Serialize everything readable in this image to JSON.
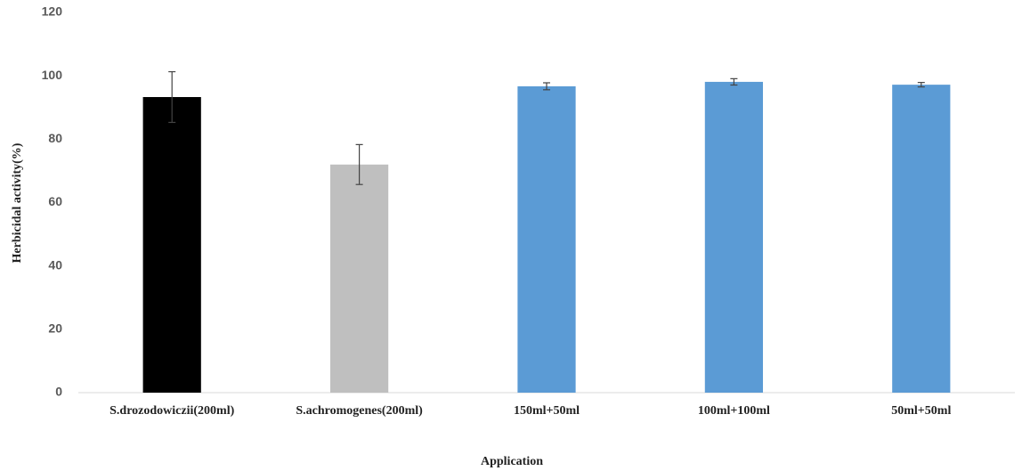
{
  "chart_data": {
    "type": "bar",
    "categories": [
      "S.drozodowiczii(200ml)",
      "S.achromogenes(200ml)",
      "150ml+50ml",
      "100ml+100ml",
      "50ml+50ml"
    ],
    "values": [
      93.3,
      72.0,
      96.7,
      98.1,
      97.2
    ],
    "errors": [
      8.0,
      6.3,
      1.1,
      1.0,
      0.7
    ],
    "colors": [
      "#000000",
      "#bfbfbf",
      "#5b9bd5",
      "#5b9bd5",
      "#5b9bd5"
    ],
    "ylim": [
      0,
      120
    ],
    "yticks": [
      0,
      20,
      40,
      60,
      80,
      100,
      120
    ],
    "xlabel": "Application",
    "ylabel": "Herbicidal activity(%)",
    "grid": false
  }
}
